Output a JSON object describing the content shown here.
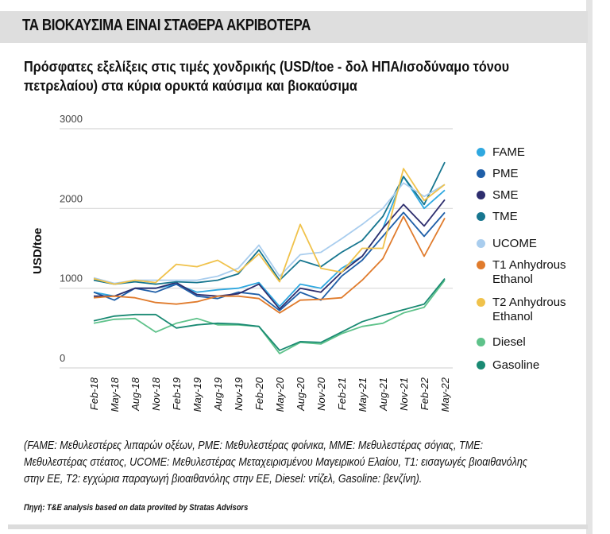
{
  "header": {
    "title": "ΤΑ ΒΙΟΚΑΥΣΙΜΑ ΕΙΝΑΙ ΣΤΑΘΕΡΑ ΑΚΡΙΒΟΤΕΡΑ"
  },
  "subtitle": "Πρόσφατες εξελίξεις στις τιμές χονδρικής (USD/toe - δολ ΗΠΑ/ισοδύναμο τόνου πετρελαίου) στα κύρια ορυκτά καύσιμα και βιοκαύσιμα",
  "footnote": "(FAME: Μεθυλεστέρες λιπαρών οξέων, PME: Μεθυλεστέρας φοίνικα, MME: Μεθυλεστέρας σόγιας, TME: Μεθυλεστέρας στέατος, UCOME: Μεθυλεστέρας Μεταχειρισμένου Μαγειρικού Ελαίου, T1: εισαγωγές βιοαιθανόλης στην ΕΕ, T2: εγχώρια παραγωγή βιοαιθανόλης στην ΕΕ, Diesel: ντίζελ, Gasoline: βενζίνη).",
  "source": "Πηγή: T&E analysis based on data provited by Stratas Advisors",
  "chart_data": {
    "type": "line",
    "ylabel": "USD/toe",
    "ylim": [
      0,
      3000
    ],
    "yticks": [
      "0",
      "1000",
      "2000",
      "3000"
    ],
    "grid": true,
    "legend": "right",
    "categories": [
      "Feb-18",
      "May-18",
      "Aug-18",
      "Nov-18",
      "Feb-19",
      "May-19",
      "Aug-19",
      "Nov-19",
      "Feb-20",
      "May-20",
      "Aug-20",
      "Nov-20",
      "Feb-21",
      "May-21",
      "Aug-21",
      "Nov-21",
      "Feb-22",
      "May-22"
    ],
    "series": [
      {
        "name": "FAME",
        "color": "#2fa8e0",
        "values": [
          950,
          900,
          1000,
          1000,
          1050,
          950,
          980,
          1000,
          1070,
          770,
          1050,
          1000,
          1250,
          1400,
          1750,
          2400,
          2000,
          2230
        ]
      },
      {
        "name": "PME",
        "color": "#1f5fa8",
        "values": [
          950,
          850,
          1000,
          950,
          1050,
          900,
          870,
          950,
          920,
          720,
          950,
          850,
          1150,
          1350,
          1650,
          1950,
          1650,
          1950
        ]
      },
      {
        "name": "SME",
        "color": "#2e2e6e",
        "values": [
          900,
          900,
          1000,
          1000,
          1070,
          920,
          900,
          930,
          1050,
          740,
          1000,
          950,
          1200,
          1400,
          1750,
          2050,
          1780,
          2110
        ]
      },
      {
        "name": "TME",
        "color": "#17768f",
        "values": [
          1100,
          1050,
          1080,
          1050,
          1080,
          1070,
          1100,
          1180,
          1480,
          1100,
          1350,
          1270,
          1450,
          1600,
          1900,
          2400,
          2050,
          2580
        ]
      },
      {
        "name": "UCOME",
        "color": "#a9cdee",
        "values": [
          1130,
          1060,
          1100,
          1100,
          1100,
          1100,
          1150,
          1250,
          1540,
          1150,
          1420,
          1450,
          1620,
          1800,
          2000,
          2320,
          2150,
          2300
        ]
      },
      {
        "name": "T1 Anhydrous Ethanol",
        "color": "#e07b2c",
        "values": [
          880,
          900,
          880,
          820,
          800,
          830,
          900,
          900,
          870,
          690,
          850,
          860,
          880,
          1100,
          1370,
          1900,
          1400,
          1880
        ]
      },
      {
        "name": "T2 Anhydrous Ethanol",
        "color": "#f0c24b",
        "values": [
          1120,
          1050,
          1100,
          1070,
          1300,
          1270,
          1350,
          1200,
          1430,
          1080,
          1800,
          1250,
          1200,
          1500,
          1500,
          2500,
          2100,
          2300
        ]
      },
      {
        "name": "Diesel",
        "color": "#5ec28a",
        "values": [
          560,
          610,
          620,
          450,
          560,
          620,
          540,
          540,
          520,
          180,
          320,
          300,
          430,
          520,
          560,
          690,
          760,
          1100
        ]
      },
      {
        "name": "Gasoline",
        "color": "#1a8a73",
        "values": [
          590,
          650,
          670,
          670,
          500,
          540,
          560,
          550,
          520,
          220,
          330,
          320,
          450,
          580,
          660,
          730,
          800,
          1120
        ]
      }
    ]
  }
}
